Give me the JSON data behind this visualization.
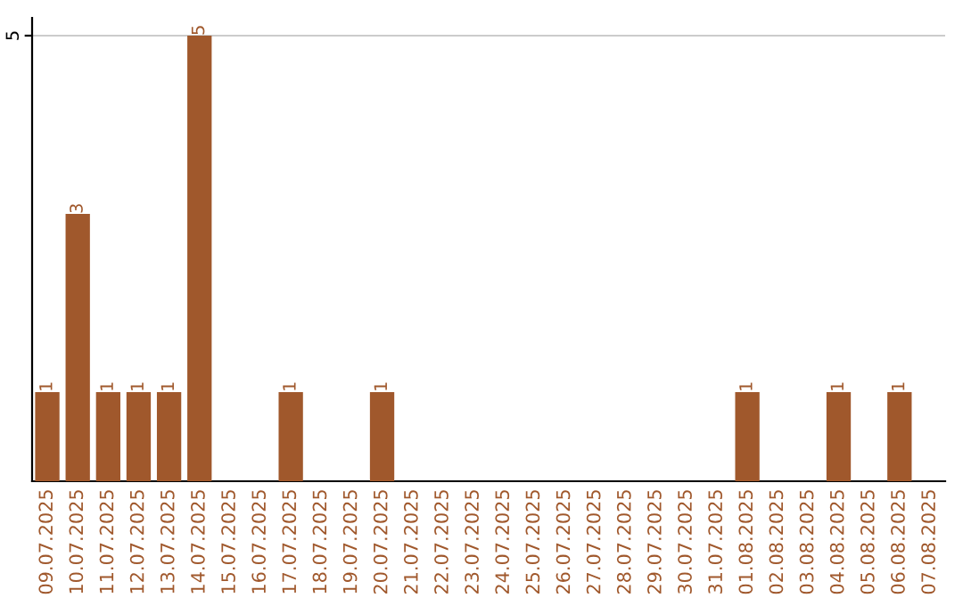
{
  "chart_data": {
    "type": "bar",
    "categories": [
      "09.07.2025",
      "10.07.2025",
      "11.07.2025",
      "12.07.2025",
      "13.07.2025",
      "14.07.2025",
      "15.07.2025",
      "16.07.2025",
      "17.07.2025",
      "18.07.2025",
      "19.07.2025",
      "20.07.2025",
      "21.07.2025",
      "22.07.2025",
      "23.07.2025",
      "24.07.2025",
      "25.07.2025",
      "26.07.2025",
      "27.07.2025",
      "28.07.2025",
      "29.07.2025",
      "30.07.2025",
      "31.07.2025",
      "01.08.2025",
      "02.08.2025",
      "03.08.2025",
      "04.08.2025",
      "05.08.2025",
      "06.08.2025",
      "07.08.2025"
    ],
    "values": [
      1,
      3,
      1,
      1,
      1,
      5,
      0,
      0,
      1,
      0,
      0,
      1,
      0,
      0,
      0,
      0,
      0,
      0,
      0,
      0,
      0,
      0,
      0,
      1,
      0,
      0,
      1,
      0,
      1,
      0
    ],
    "value_labels": [
      "1",
      "3",
      "1",
      "1",
      "1",
      "5",
      null,
      null,
      "1",
      null,
      null,
      "1",
      null,
      null,
      null,
      null,
      null,
      null,
      null,
      null,
      null,
      null,
      null,
      "1",
      null,
      null,
      "1",
      null,
      "1",
      null
    ],
    "color": "#a0582c",
    "ylim": [
      0,
      5.2
    ],
    "yticks": [
      5
    ],
    "grid": "y"
  }
}
